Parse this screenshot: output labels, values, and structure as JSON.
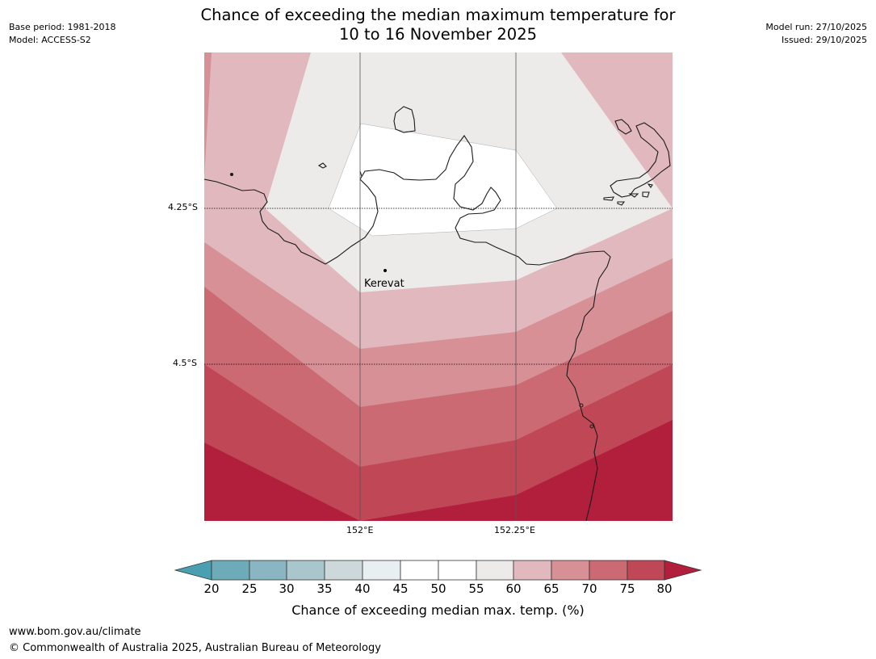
{
  "header": {
    "title_line1": "Chance of exceeding the median maximum temperature for",
    "title_line2": "10 to 16 November 2025",
    "base_period": "Base period: 1981-2018",
    "model": "Model: ACCESS-S2",
    "model_run": "Model run: 27/10/2025",
    "issued": "Issued: 29/10/2025"
  },
  "map": {
    "place_label": "Kerevat",
    "lat_labels": [
      "4.25°S",
      "4.5°S"
    ],
    "lon_labels": [
      "152°E",
      "152.25°E"
    ]
  },
  "colorbar": {
    "title": "Chance of exceeding median max. temp. (%)",
    "ticks": [
      "20",
      "25",
      "30",
      "35",
      "40",
      "45",
      "50",
      "55",
      "60",
      "65",
      "70",
      "75",
      "80"
    ],
    "colors": {
      "under": "#4a9fb0",
      "b20_25": "#6eabb9",
      "b25_30": "#8ab5c3",
      "b30_35": "#a8c6cc",
      "b35_40": "#cdd8db",
      "b40_45": "#e9eff0",
      "b45_55": "#ffffff",
      "b55_60": "#edebea",
      "b60_65": "#e1b8bd",
      "b65_70": "#d69096",
      "b70_75": "#cb6a73",
      "b75_80": "#c04856",
      "over": "#b21f3c"
    }
  },
  "footer": {
    "url": "www.bom.gov.au/climate",
    "copyright": "© Commonwealth of Australia 2025, Australian Bureau of Meteorology"
  }
}
